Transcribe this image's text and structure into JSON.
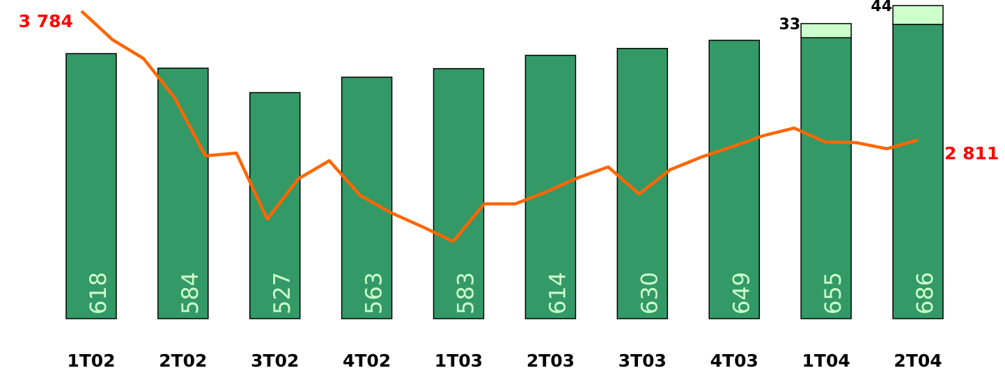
{
  "chart_data": [
    {
      "type": "bar",
      "categories": [
        "1T02",
        "2T02",
        "3T02",
        "4T02",
        "1T03",
        "2T03",
        "3T03",
        "4T03",
        "1T04",
        "2T04"
      ],
      "series": [
        {
          "color": "#339966",
          "values": [
            618,
            584,
            527,
            563,
            583,
            614,
            630,
            649,
            655,
            686
          ]
        },
        {
          "color": "#ccffcc",
          "values": [
            null,
            null,
            null,
            null,
            null,
            null,
            null,
            null,
            33,
            44
          ]
        }
      ],
      "ylim": [
        0,
        743
      ]
    },
    {
      "type": "line",
      "color": "#ff6600",
      "values": [
        3784,
        3568,
        3426,
        3132,
        2690,
        2711,
        2211,
        2516,
        2653,
        2390,
        2259,
        2154,
        2043,
        2327,
        2327,
        2417,
        2522,
        2606,
        2401,
        2585,
        2680,
        2758,
        2842,
        2900,
        2795,
        2790,
        2743,
        2811
      ],
      "value_labels": [
        "3 784",
        null,
        null,
        null,
        null,
        null,
        null,
        null,
        null,
        null,
        null,
        null,
        null,
        null,
        null,
        null,
        null,
        null,
        null,
        null,
        null,
        null,
        null,
        null,
        null,
        null,
        null,
        "2 811"
      ],
      "ylim": [
        1459,
        3868
      ]
    }
  ]
}
